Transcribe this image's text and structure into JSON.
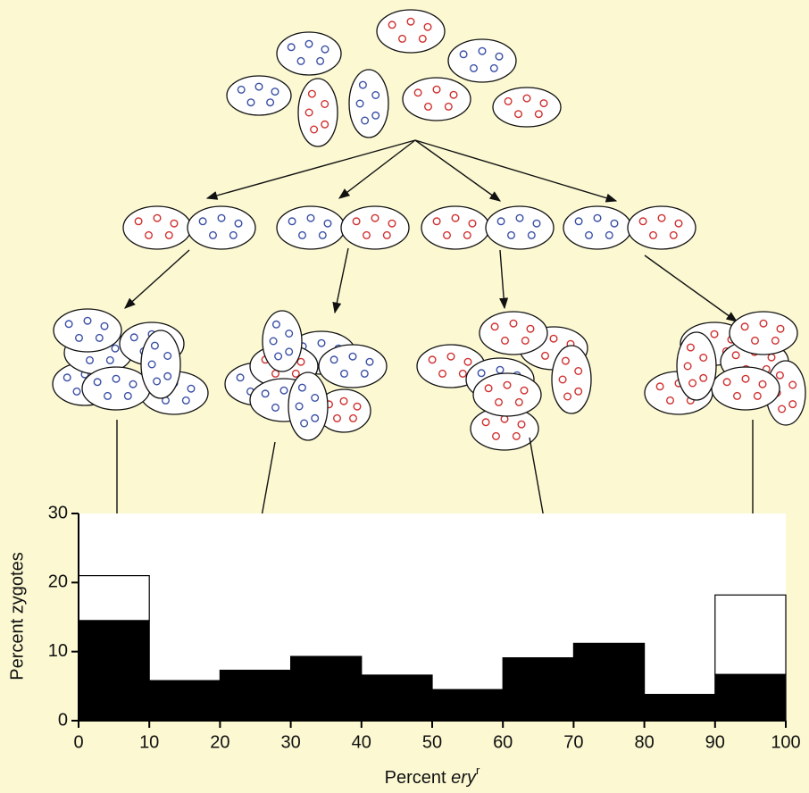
{
  "chart_data": {
    "type": "histogram",
    "x_label": [
      "Percent",
      "ery",
      "r"
    ],
    "y_label": "Percent zygotes",
    "bins": [
      0,
      10,
      20,
      30,
      40,
      50,
      60,
      70,
      80,
      90,
      100
    ],
    "series": [
      {
        "color": "#000000",
        "values": [
          14.5,
          5.8,
          7.3,
          9.3,
          6.6,
          4.5,
          9.1,
          11.2,
          3.8,
          6.7
        ]
      },
      {
        "color": "#ffffff",
        "values": [
          6.5,
          null,
          null,
          null,
          null,
          null,
          null,
          null,
          null,
          11.5
        ]
      }
    ],
    "xlim": [
      0,
      100
    ],
    "xticks": [
      0,
      10,
      20,
      30,
      40,
      50,
      60,
      70,
      80,
      90,
      100
    ],
    "ylim": [
      0,
      30
    ],
    "yticks": [
      0,
      10,
      20,
      30
    ]
  }
}
